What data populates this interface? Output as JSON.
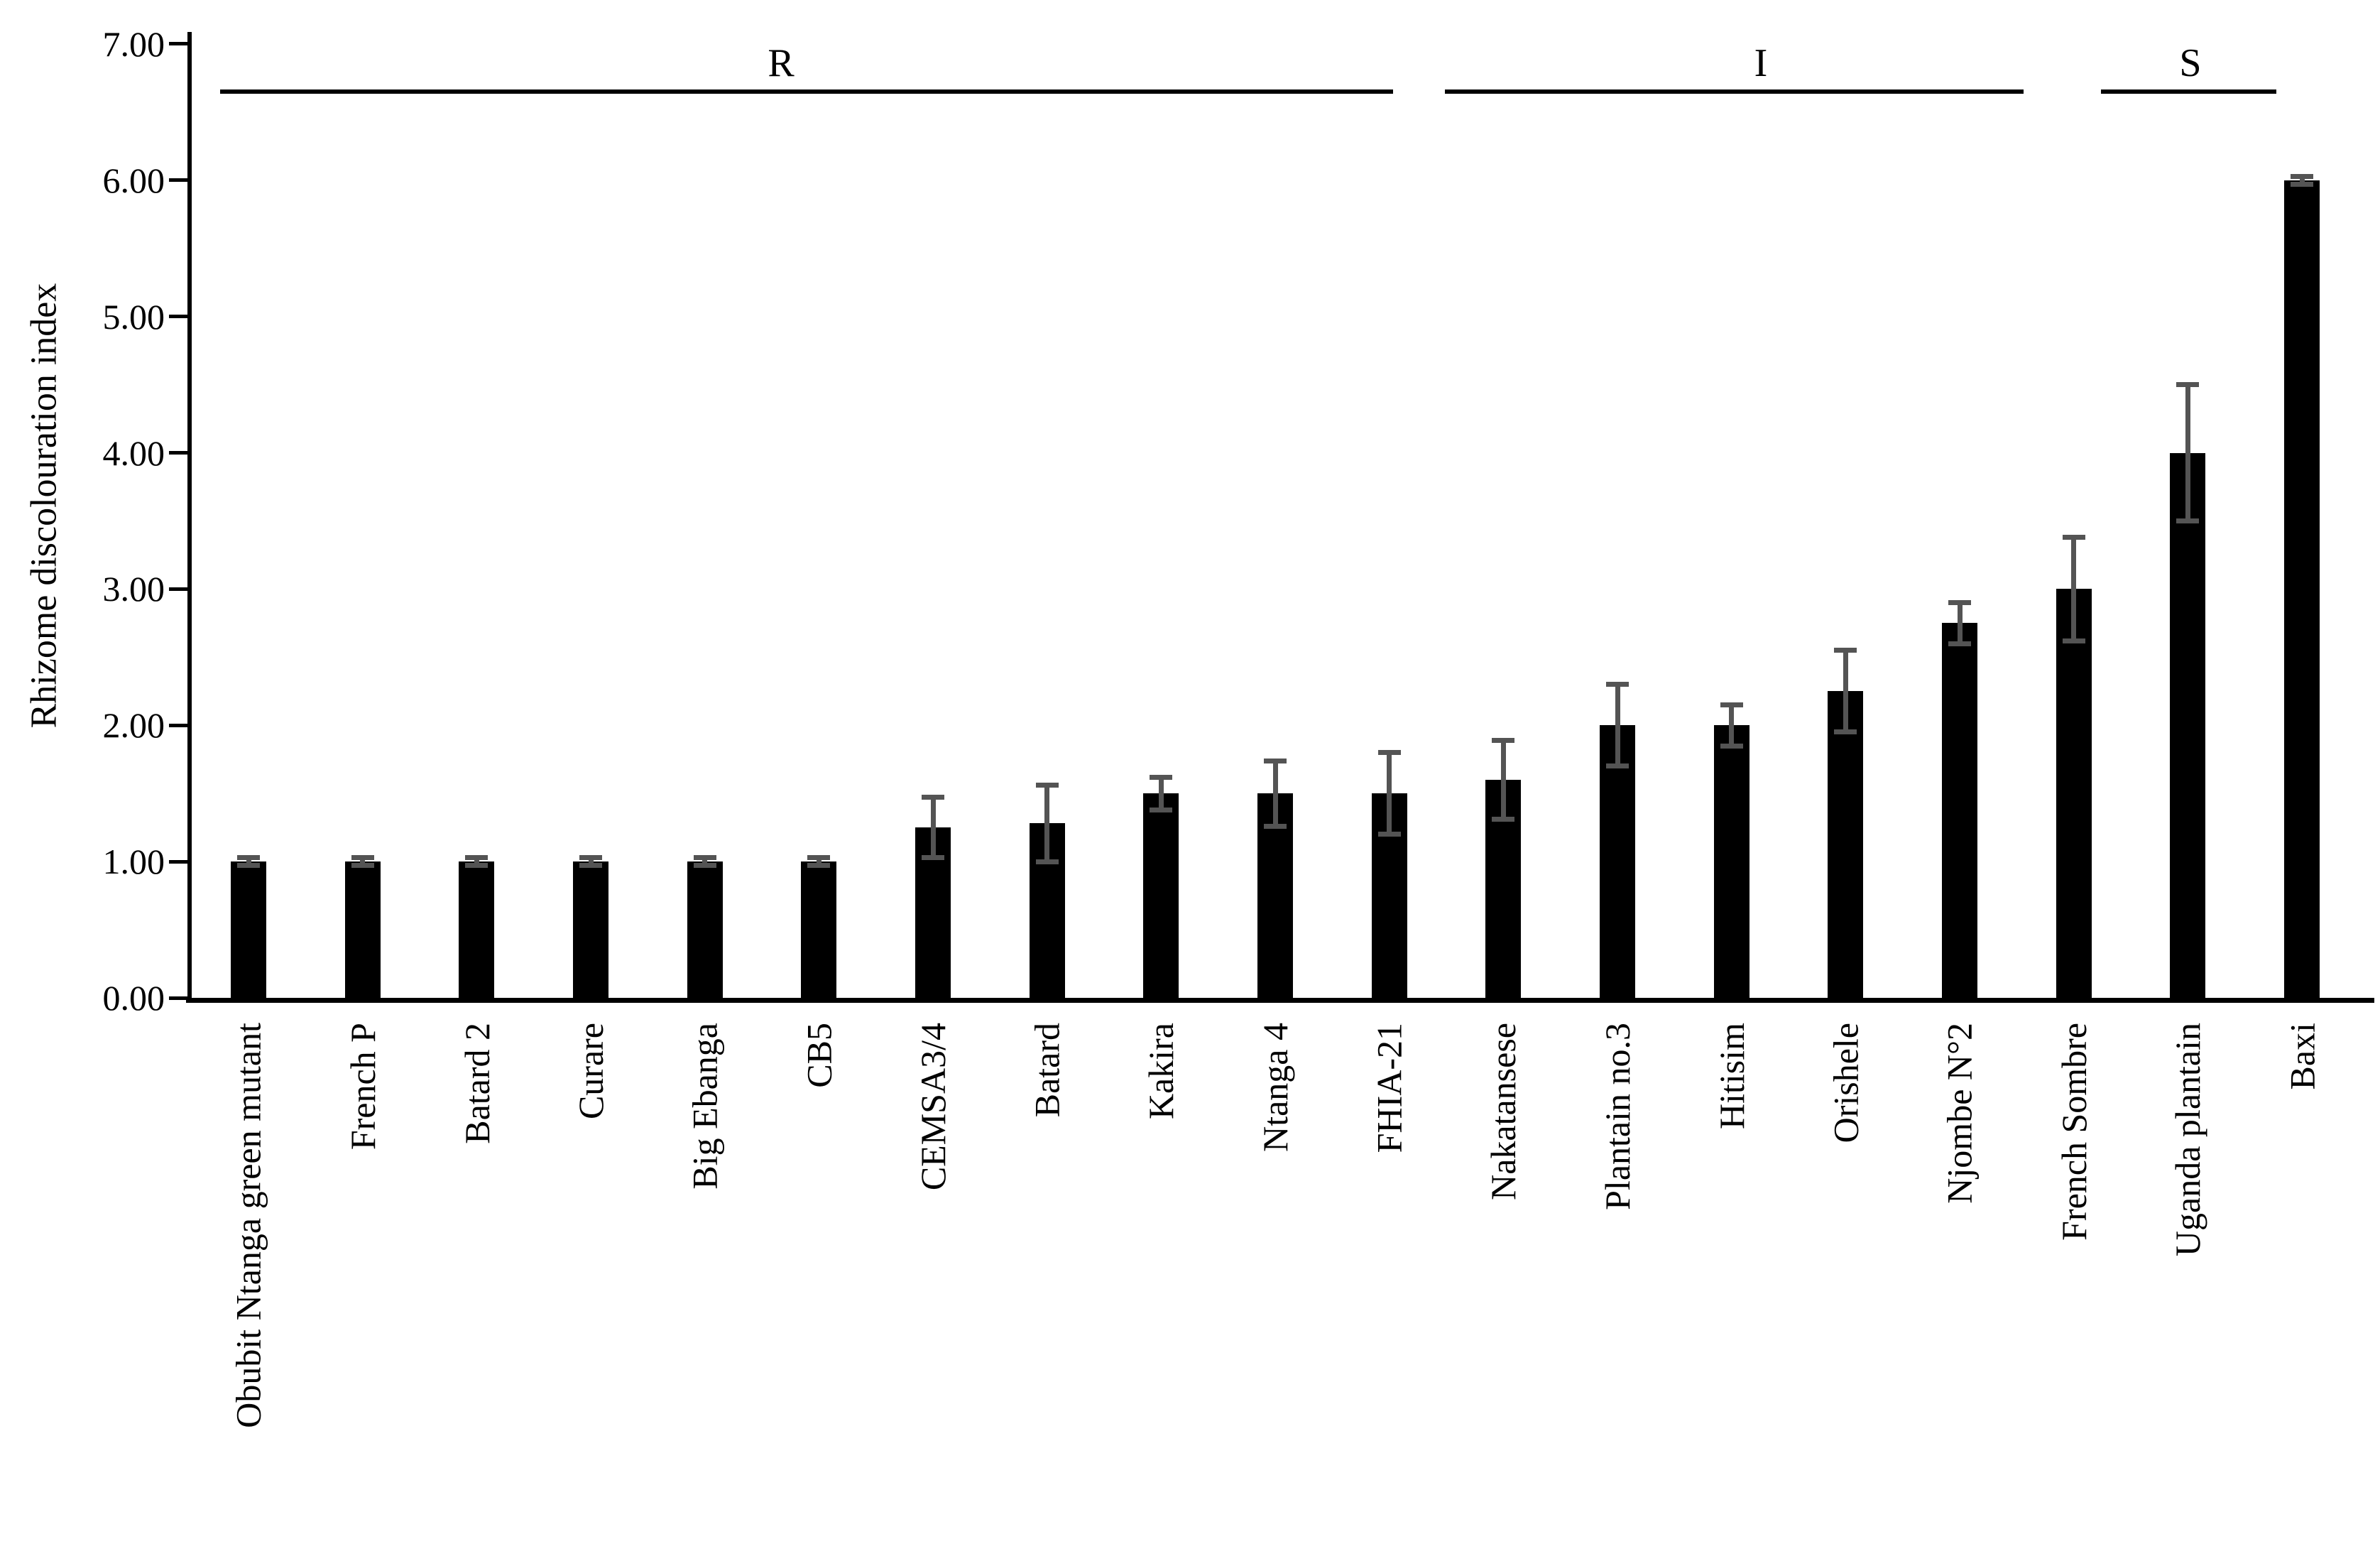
{
  "chart_data": {
    "type": "bar",
    "title": "",
    "xlabel": "",
    "ylabel": "Rhizome discolouration index",
    "ylim": [
      0,
      7
    ],
    "ytick_interval": 1.0,
    "ytick_labels": [
      "0.00",
      "1.00",
      "2.00",
      "3.00",
      "4.00",
      "5.00",
      "6.00",
      "7.00"
    ],
    "grid": false,
    "legend": false,
    "bar_color": "#000000",
    "error_bar_color": "#545454",
    "categories": [
      "Obubit Ntanga green mutant",
      "French P",
      "Batard 2",
      "Curare",
      "Big Ebanga",
      "CB5",
      "CEMSA3/4",
      "Batard",
      "Kakira",
      "Ntanga 4",
      "FHIA-21",
      "Nakatansese",
      "Plantain no.3",
      "Hitisim",
      "Orishele",
      "Njombe N°2",
      "French Sombre",
      "Uganda plantain",
      "Baxi"
    ],
    "values": [
      1.0,
      1.0,
      1.0,
      1.0,
      1.0,
      1.0,
      1.25,
      1.28,
      1.5,
      1.5,
      1.5,
      1.6,
      2.0,
      2.0,
      2.25,
      2.75,
      3.0,
      4.0,
      6.0
    ],
    "errors": [
      0.03,
      0.03,
      0.03,
      0.03,
      0.03,
      0.03,
      0.22,
      0.28,
      0.12,
      0.24,
      0.3,
      0.29,
      0.3,
      0.15,
      0.3,
      0.15,
      0.38,
      0.5,
      0.03
    ],
    "groups": [
      {
        "label": "R",
        "start_index": 0,
        "end_index": 10,
        "line_x1": 310,
        "line_x2": 1962,
        "label_x": 1100
      },
      {
        "label": "I",
        "start_index": 11,
        "end_index": 16,
        "line_x1": 2035,
        "line_x2": 2850,
        "label_x": 2480
      },
      {
        "label": "S",
        "start_index": 17,
        "end_index": 18,
        "line_x1": 2959,
        "line_x2": 3206,
        "label_x": 3085
      }
    ]
  }
}
